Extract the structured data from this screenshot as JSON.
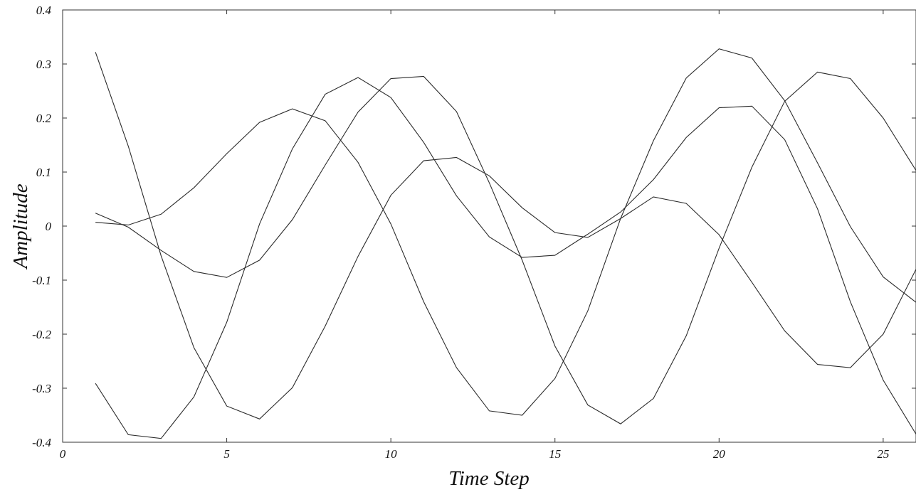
{
  "chart_data": {
    "type": "line",
    "title": "",
    "xlabel": "Time Step",
    "ylabel": "Amplitude",
    "xlim": [
      0,
      26
    ],
    "ylim": [
      -0.4,
      0.4
    ],
    "grid": false,
    "line_color": "#2b2b2b",
    "x_ticks": [
      0,
      5,
      10,
      15,
      20,
      25
    ],
    "x_tick_labels": [
      "0",
      "5",
      "10",
      "15",
      "20",
      "25"
    ],
    "y_ticks": [
      -0.4,
      -0.3,
      -0.2,
      -0.1,
      0,
      0.1,
      0.2,
      0.3,
      0.4
    ],
    "y_tick_labels": [
      "-0.4",
      "-0.3",
      "-0.2",
      "-0.1",
      "0",
      "0.1",
      "0.2",
      "0.3",
      "0.4"
    ],
    "x": [
      1,
      2,
      3,
      4,
      5,
      6,
      7,
      8,
      9,
      10,
      11,
      12,
      13,
      14,
      15,
      16,
      17,
      18,
      19,
      20,
      21,
      22,
      23,
      24,
      25,
      26
    ],
    "series": [
      {
        "values": [
          0.322,
          0.148,
          -0.055,
          -0.225,
          -0.333,
          -0.357,
          -0.299,
          -0.185,
          -0.056,
          0.057,
          0.121,
          0.127,
          0.093,
          0.034,
          -0.012,
          -0.021,
          0.014,
          0.054,
          0.042,
          -0.016,
          -0.104,
          -0.194,
          -0.256,
          -0.262,
          -0.2,
          -0.08
        ]
      },
      {
        "values": [
          -0.291,
          -0.386,
          -0.393,
          -0.316,
          -0.178,
          0.004,
          0.143,
          0.244,
          0.275,
          0.238,
          0.155,
          0.056,
          -0.02,
          -0.058,
          -0.054,
          -0.015,
          0.026,
          0.086,
          0.164,
          0.219,
          0.222,
          0.16,
          0.032,
          -0.14,
          -0.285,
          -0.385
        ]
      },
      {
        "values": [
          0.007,
          0.002,
          0.022,
          0.071,
          0.134,
          0.192,
          0.217,
          0.195,
          0.118,
          0.004,
          -0.14,
          -0.262,
          -0.342,
          -0.35,
          -0.282,
          -0.157,
          0.014,
          0.158,
          0.274,
          0.328,
          0.311,
          0.232,
          0.117,
          -0.001,
          -0.094,
          -0.141
        ]
      },
      {
        "values": [
          0.024,
          -0.002,
          -0.045,
          -0.084,
          -0.095,
          -0.063,
          0.012,
          0.113,
          0.211,
          0.273,
          0.277,
          0.212,
          0.08,
          -0.063,
          -0.222,
          -0.331,
          -0.366,
          -0.319,
          -0.203,
          -0.041,
          0.109,
          0.231,
          0.285,
          0.273,
          0.2,
          0.103
        ]
      }
    ]
  }
}
